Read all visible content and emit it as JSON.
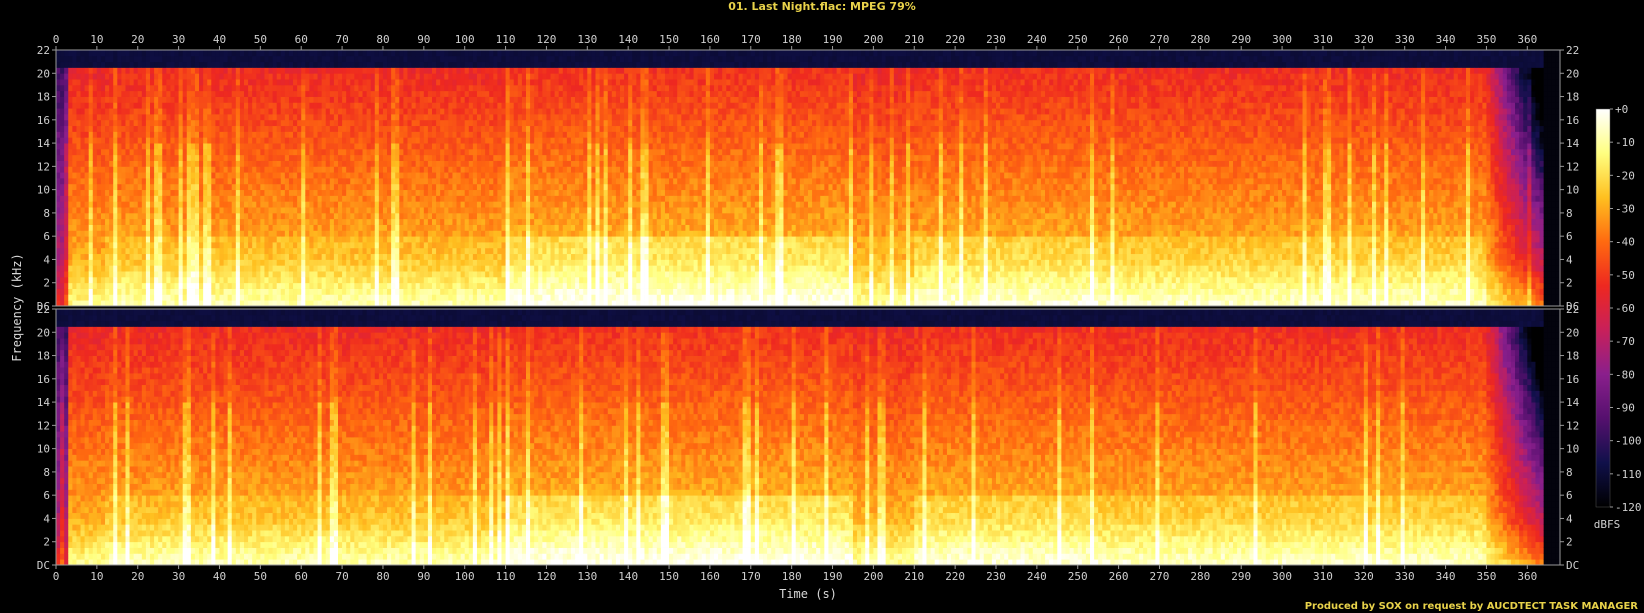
{
  "title": "01. Last Night.flac: MPEG 79%",
  "credits": "Produced by SOX on request by AUCDTECT TASK MANAGER",
  "chart_data": {
    "type": "heatmap",
    "title": "01. Last Night.flac: MPEG 79%",
    "xlabel": "Time (s)",
    "ylabel": "Frequency (kHz)",
    "xlim": [
      0,
      368
    ],
    "ylim": [
      0,
      22
    ],
    "x_ticks": [
      0,
      10,
      20,
      30,
      40,
      50,
      60,
      70,
      80,
      90,
      100,
      110,
      120,
      130,
      140,
      150,
      160,
      170,
      180,
      190,
      200,
      210,
      220,
      230,
      240,
      250,
      260,
      270,
      280,
      290,
      300,
      310,
      320,
      330,
      340,
      350,
      360
    ],
    "y_tick_labels": [
      "DC",
      "2",
      "4",
      "6",
      "8",
      "10",
      "12",
      "14",
      "16",
      "18",
      "20",
      "22"
    ],
    "y_tick_values": [
      0,
      2,
      4,
      6,
      8,
      10,
      12,
      14,
      16,
      18,
      20,
      22
    ],
    "channels": 2,
    "lowpass_cutoff_khz": 20.5,
    "audio_end_s": 364,
    "colorbar": {
      "unit": "dBFS",
      "tick_labels": [
        "+0",
        "-10",
        "-20",
        "-30",
        "-40",
        "-50",
        "-60",
        "-70",
        "-80",
        "-90",
        "-100",
        "-110",
        "-120"
      ],
      "tick_values": [
        0,
        -10,
        -20,
        -30,
        -40,
        -50,
        -60,
        -70,
        -80,
        -90,
        -100,
        -110,
        -120
      ],
      "range": [
        -120,
        0
      ]
    },
    "colors": {
      "stop0": "#000000",
      "stop1": "#10104a",
      "stop2": "#55106e",
      "stop3": "#8a1f8c",
      "stop4": "#c8205a",
      "stop5": "#ee2820",
      "stop6": "#ff6a10",
      "stop7": "#ffc020",
      "stop8": "#ffff80",
      "stop9": "#ffffff"
    }
  }
}
